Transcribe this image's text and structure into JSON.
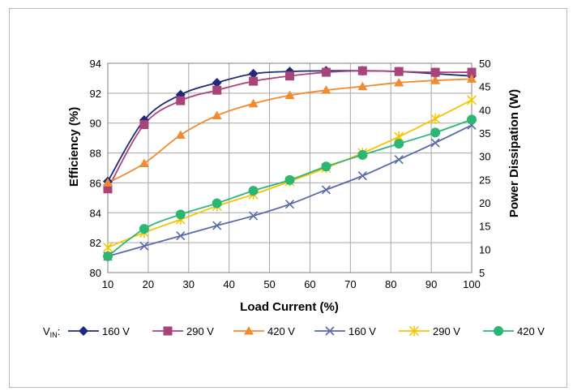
{
  "chart_data": {
    "type": "line",
    "title": "",
    "xlabel": "Load Current (%)",
    "ylabel": "Efficiency (%)",
    "y2label": "Power Dissipation (W)",
    "x": [
      10,
      19,
      28,
      37,
      46,
      55,
      64,
      73,
      82,
      91,
      100
    ],
    "xticks": [
      "10",
      "20",
      "30",
      "40",
      "50",
      "60",
      "70",
      "80",
      "90",
      "100"
    ],
    "xlim": [
      10,
      100
    ],
    "ylim": [
      80,
      94
    ],
    "yticks": [
      "80",
      "82",
      "84",
      "86",
      "88",
      "90",
      "92",
      "94"
    ],
    "y2lim": [
      5,
      50
    ],
    "y2ticks": [
      "5",
      "10",
      "15",
      "20",
      "25",
      "30",
      "35",
      "40",
      "45",
      "50"
    ],
    "grid": true,
    "legend_prefix": "V",
    "legend_prefix_sub": "IN",
    "legend_prefix_suffix": ":",
    "legend_position": "bottom",
    "series": [
      {
        "name": "160 V",
        "axis": "left",
        "marker": "diamond",
        "color": "#1f2a7a",
        "values": [
          86.1,
          90.2,
          91.9,
          92.7,
          93.3,
          93.45,
          93.5,
          93.5,
          93.45,
          93.3,
          93.15
        ]
      },
      {
        "name": "290 V",
        "axis": "left",
        "marker": "square",
        "color": "#a8447a",
        "values": [
          85.6,
          89.9,
          91.5,
          92.2,
          92.8,
          93.15,
          93.4,
          93.5,
          93.45,
          93.4,
          93.4
        ]
      },
      {
        "name": "420 V",
        "axis": "left",
        "marker": "triangle",
        "color": "#f28a2e",
        "values": [
          86.0,
          87.3,
          89.2,
          90.5,
          91.3,
          91.85,
          92.2,
          92.45,
          92.7,
          92.85,
          92.95
        ]
      },
      {
        "name": "160 V",
        "axis": "right",
        "marker": "x",
        "color": "#5a6aa8",
        "values": [
          8.5,
          10.7,
          12.9,
          15.1,
          17.2,
          19.7,
          22.8,
          25.8,
          29.3,
          32.9,
          36.7
        ]
      },
      {
        "name": "290 V",
        "axis": "right",
        "marker": "star",
        "color": "#f5c400",
        "values": [
          10.4,
          13.6,
          16.4,
          19.3,
          21.8,
          24.6,
          27.5,
          30.7,
          34.2,
          38.1,
          42.1
        ]
      },
      {
        "name": "420 V",
        "axis": "right",
        "marker": "circle",
        "color": "#2bb673",
        "values": [
          8.5,
          14.4,
          17.5,
          19.9,
          22.6,
          24.9,
          27.8,
          30.3,
          32.7,
          35.1,
          37.9
        ]
      }
    ]
  }
}
